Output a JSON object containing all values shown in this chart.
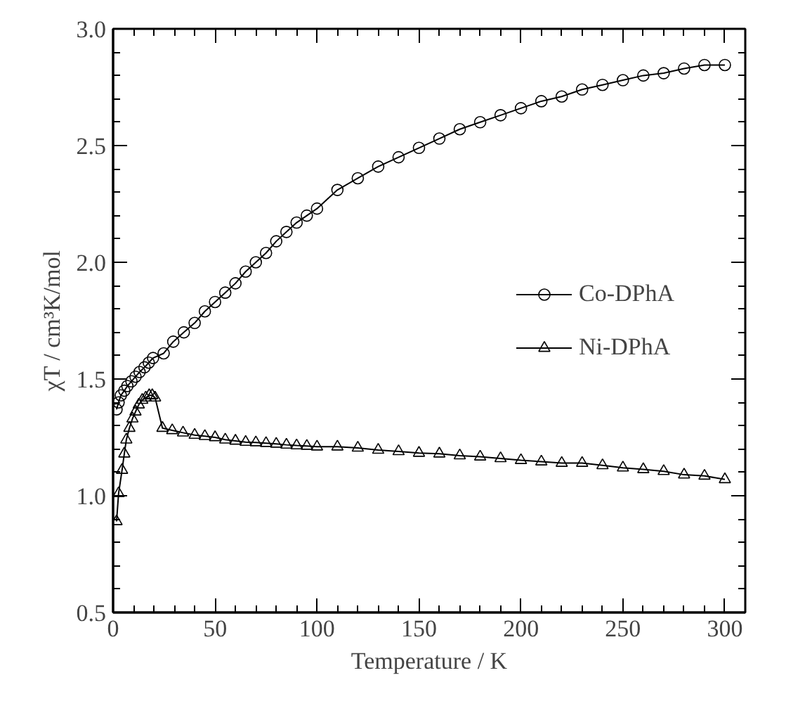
{
  "chart_data": {
    "type": "line",
    "xlabel": "Temperature / K",
    "ylabel": "χT / cm³K/mol",
    "xlim": [
      0,
      310
    ],
    "ylim": [
      0.5,
      3.0
    ],
    "xticks": [
      0,
      50,
      100,
      150,
      200,
      250,
      300
    ],
    "yticks": [
      {
        "value": 0.5,
        "label": "0.5"
      },
      {
        "value": 1.0,
        "label": "1.0"
      },
      {
        "value": 1.5,
        "label": "1.5"
      },
      {
        "value": 2.0,
        "label": "2.0"
      },
      {
        "value": 2.5,
        "label": "2.5"
      },
      {
        "value": 3.0,
        "label": "3.0"
      }
    ],
    "grid": false,
    "legend": "right",
    "line_style": "solid",
    "series": [
      {
        "name": "Co-DPhA",
        "color": "#000000",
        "marker": "circle",
        "x": [
          1.7,
          2.7,
          3.8,
          5.5,
          7,
          9,
          11,
          13,
          15.4,
          17.5,
          19.6,
          24.8,
          29.5,
          34.7,
          40,
          45,
          50,
          55,
          60,
          65,
          70,
          75,
          80,
          85,
          90,
          95,
          100,
          110,
          120,
          130,
          140,
          150,
          160,
          170,
          180,
          190,
          200,
          210,
          220,
          230,
          240,
          250,
          260,
          270,
          280,
          290,
          300
        ],
        "values": [
          1.37,
          1.4,
          1.43,
          1.45,
          1.47,
          1.49,
          1.51,
          1.53,
          1.55,
          1.57,
          1.59,
          1.61,
          1.66,
          1.7,
          1.74,
          1.79,
          1.83,
          1.87,
          1.91,
          1.96,
          2.0,
          2.04,
          2.09,
          2.13,
          2.17,
          2.2,
          2.23,
          2.31,
          2.36,
          2.41,
          2.45,
          2.49,
          2.53,
          2.57,
          2.6,
          2.63,
          2.66,
          2.69,
          2.71,
          2.74,
          2.76,
          2.78,
          2.8,
          2.81,
          2.83,
          2.845,
          2.845
        ]
      },
      {
        "name": "Ni-DPhA",
        "color": "#000000",
        "marker": "triangle",
        "x": [
          1.7,
          2.7,
          4.4,
          5.5,
          6.5,
          8,
          9.5,
          11,
          12.6,
          14.3,
          16,
          17.7,
          19.2,
          20.6,
          24.2,
          29,
          34.3,
          40,
          45,
          50,
          55,
          60,
          65,
          70,
          75,
          80,
          85,
          90,
          95,
          100,
          110,
          120,
          130,
          140,
          150,
          160,
          170,
          180,
          190,
          200,
          210,
          220,
          230,
          240,
          250,
          260,
          270,
          280,
          290,
          300
        ],
        "values": [
          0.89,
          1.01,
          1.11,
          1.18,
          1.24,
          1.29,
          1.33,
          1.36,
          1.39,
          1.41,
          1.42,
          1.43,
          1.43,
          1.42,
          1.29,
          1.28,
          1.27,
          1.26,
          1.255,
          1.25,
          1.24,
          1.235,
          1.23,
          1.228,
          1.225,
          1.222,
          1.218,
          1.215,
          1.213,
          1.21,
          1.21,
          1.205,
          1.196,
          1.19,
          1.183,
          1.18,
          1.172,
          1.167,
          1.16,
          1.152,
          1.146,
          1.14,
          1.14,
          1.13,
          1.12,
          1.113,
          1.105,
          1.09,
          1.085,
          1.07
        ]
      }
    ]
  }
}
